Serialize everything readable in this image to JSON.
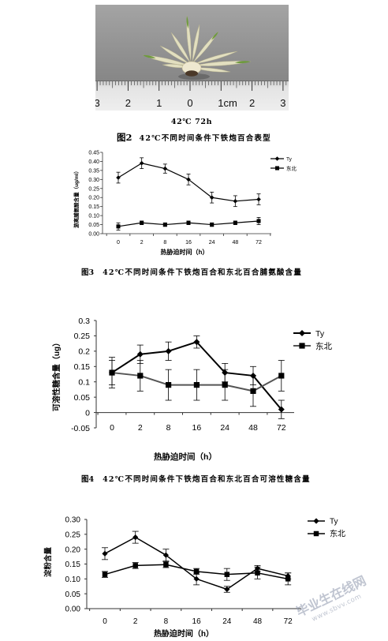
{
  "photo": {
    "ruler_labels": [
      "3",
      "2",
      "1",
      "0",
      "1cm",
      "2",
      "3"
    ]
  },
  "photo_caption": "42℃  72h",
  "figures": [
    {
      "label": "图2",
      "caption": "42℃不同时间条件下铁炮百合表型"
    },
    {
      "label": "图3",
      "caption": "42℃不同时间条件下铁炮百合和东北百合脯氨酸含量"
    },
    {
      "label": "图4",
      "caption": "42℃不同时间条件下铁炮百合和东北百合可溶性糖含量"
    }
  ],
  "chart_data": [
    {
      "type": "line",
      "categories": [
        "0",
        "2",
        "8",
        "16",
        "24",
        "48",
        "72"
      ],
      "xlabel": "热胁迫时间（h）",
      "ylabel": "游离脯氨酸含量（ug/ml）",
      "ylim": [
        0,
        0.45
      ],
      "yticks": [
        "0.45",
        "0.40",
        "0.35",
        "0.30",
        "0.25",
        "0.20",
        "0.15",
        "0.10",
        "0.05",
        "0.00"
      ],
      "grid": false,
      "legend": "top-right",
      "series": [
        {
          "name": "Ty",
          "marker": "diamond",
          "color": "#000000",
          "values": [
            0.31,
            0.39,
            0.36,
            0.3,
            0.2,
            0.18,
            0.19
          ],
          "error": [
            0.03,
            0.03,
            0.025,
            0.03,
            0.03,
            0.03,
            0.03
          ]
        },
        {
          "name": "东北",
          "marker": "square",
          "color": "#000000",
          "values": [
            0.04,
            0.06,
            0.05,
            0.06,
            0.05,
            0.06,
            0.07
          ],
          "error": [
            0.02,
            0.01,
            0.01,
            0.01,
            0.01,
            0.01,
            0.02
          ]
        }
      ]
    },
    {
      "type": "line",
      "categories": [
        "0",
        "2",
        "8",
        "16",
        "24",
        "48",
        "72"
      ],
      "xlabel": "热胁迫时间（h）",
      "ylabel": "可溶性糖含量（ug）",
      "ylim": [
        -0.05,
        0.3
      ],
      "yticks": [
        "0.3",
        "0.25",
        "0.2",
        "0.15",
        "0.1",
        "0.05",
        "0",
        "-0.05"
      ],
      "grid": false,
      "legend": "top-right",
      "series": [
        {
          "name": "Ty",
          "marker": "diamond",
          "color": "#000000",
          "values": [
            0.13,
            0.19,
            0.2,
            0.23,
            0.13,
            0.12,
            0.01
          ],
          "error": [
            0.04,
            0.03,
            0.03,
            0.02,
            0.03,
            0.03,
            0.03
          ]
        },
        {
          "name": "东北",
          "marker": "square",
          "color": "#555555",
          "values": [
            0.13,
            0.12,
            0.09,
            0.09,
            0.09,
            0.07,
            0.12
          ],
          "error": [
            0.05,
            0.05,
            0.05,
            0.05,
            0.05,
            0.05,
            0.05
          ]
        }
      ]
    },
    {
      "type": "line",
      "categories": [
        "0",
        "2",
        "8",
        "16",
        "24",
        "48",
        "72"
      ],
      "xlabel": "热胁迫时间（h）",
      "ylabel": "淀粉含量",
      "ylim": [
        0,
        0.3
      ],
      "yticks": [
        "0.30",
        "0.25",
        "0.20",
        "0.15",
        "0.10",
        "0.05",
        "0.00"
      ],
      "grid": false,
      "legend": "top-right",
      "series": [
        {
          "name": "Ty",
          "marker": "diamond",
          "color": "#000000",
          "values": [
            0.185,
            0.24,
            0.18,
            0.1,
            0.065,
            0.135,
            0.11
          ],
          "error": [
            0.02,
            0.02,
            0.02,
            0.02,
            0.01,
            0.01,
            0.01
          ]
        },
        {
          "name": "东北",
          "marker": "square",
          "color": "#000000",
          "values": [
            0.115,
            0.145,
            0.148,
            0.125,
            0.115,
            0.12,
            0.1
          ],
          "error": [
            0.01,
            0.01,
            0.01,
            0.01,
            0.02,
            0.02,
            0.02
          ]
        }
      ]
    }
  ],
  "watermark": {
    "text": "毕业生在线网",
    "url": "www.sbvv.com"
  }
}
